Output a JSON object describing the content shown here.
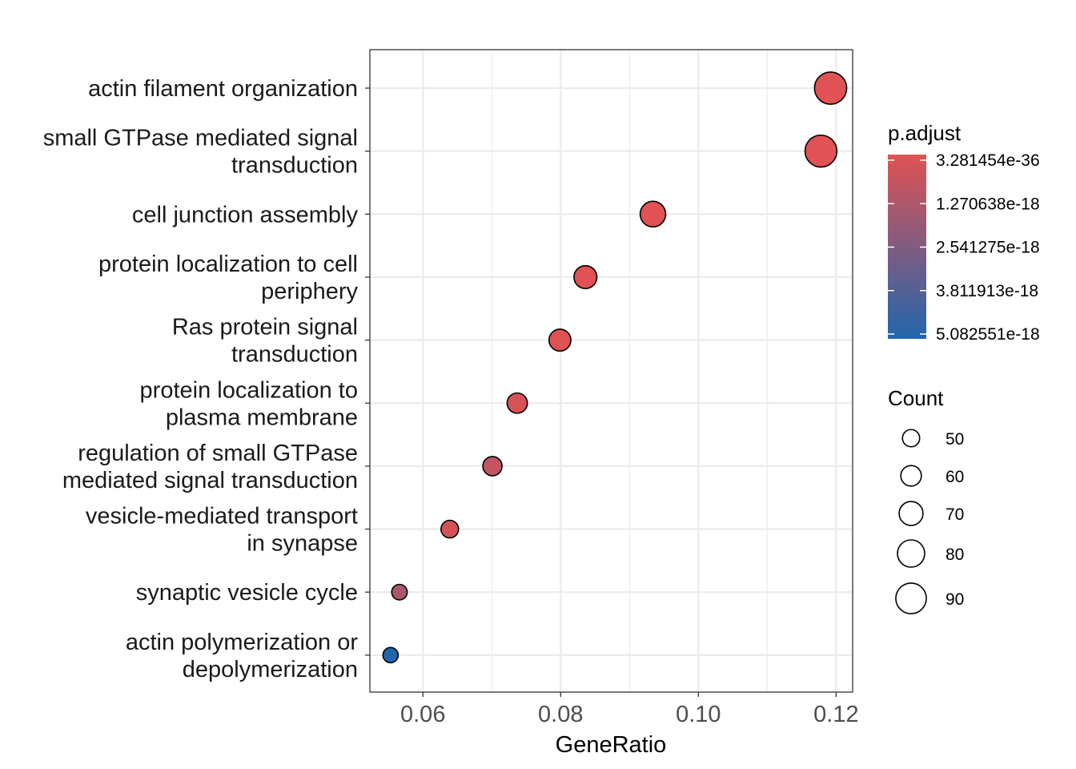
{
  "chart_data": {
    "type": "scatter",
    "subtype": "dot-plot",
    "title": "",
    "xlabel": "GeneRatio",
    "ylabel": "",
    "xlim": [
      0.0523,
      0.1224
    ],
    "x_ticks": [
      0.06,
      0.08,
      0.1,
      0.12
    ],
    "x_tick_labels": [
      "0.06",
      "0.08",
      "0.10",
      "0.12"
    ],
    "grid": true,
    "points": [
      {
        "term": "actin filament organization",
        "x": 0.1192,
        "count": 95,
        "p_adjust": 3.281454e-36
      },
      {
        "term": "small GTPase mediated signal transduction",
        "x": 0.1178,
        "count": 94,
        "p_adjust": 1e-30
      },
      {
        "term": "cell junction assembly",
        "x": 0.0934,
        "count": 75,
        "p_adjust": 1e-25
      },
      {
        "term": "protein localization to cell periphery",
        "x": 0.0836,
        "count": 67,
        "p_adjust": 1e-22
      },
      {
        "term": "Ras protein signal transduction",
        "x": 0.0799,
        "count": 64,
        "p_adjust": 3e-20
      },
      {
        "term": "protein localization to plasma membrane",
        "x": 0.0737,
        "count": 59,
        "p_adjust": 2e-19
      },
      {
        "term": "regulation of small GTPase mediated signal transduction",
        "x": 0.0701,
        "count": 56,
        "p_adjust": 8e-19
      },
      {
        "term": "vesicle-mediated transport in synapse",
        "x": 0.0639,
        "count": 51,
        "p_adjust": 3e-19
      },
      {
        "term": "synaptic vesicle cycle",
        "x": 0.0566,
        "count": 45,
        "p_adjust": 1.5e-18
      },
      {
        "term": "actin polymerization or depolymerization",
        "x": 0.0553,
        "count": 44,
        "p_adjust": 5.082551e-18
      }
    ],
    "y_tick_labels": [
      [
        "actin filament organization"
      ],
      [
        "small GTPase mediated signal",
        "transduction"
      ],
      [
        "cell junction assembly"
      ],
      [
        "protein localization to cell",
        "periphery"
      ],
      [
        "Ras protein signal",
        "transduction"
      ],
      [
        "protein localization to",
        "plasma membrane"
      ],
      [
        "regulation of small GTPase",
        "mediated signal transduction"
      ],
      [
        "vesicle-mediated transport",
        "in synapse"
      ],
      [
        "synaptic vesicle cycle"
      ],
      [
        "actin polymerization or",
        "depolymerization"
      ]
    ],
    "color_legend": {
      "title": "p.adjust",
      "labels": [
        "3.281454e-36",
        "1.270638e-18",
        "2.541275e-18",
        "3.811913e-18",
        "5.082551e-18"
      ],
      "values": [
        3.281454e-36,
        1.270638e-18,
        2.541275e-18,
        3.811913e-18,
        5.082551e-18
      ],
      "low_color": "#E05253",
      "high_color": "#2166AC"
    },
    "size_legend": {
      "title": "Count",
      "labels": [
        "50",
        "60",
        "70",
        "80",
        "90"
      ],
      "values": [
        50,
        60,
        70,
        80,
        90
      ]
    },
    "legend_position": "right"
  }
}
